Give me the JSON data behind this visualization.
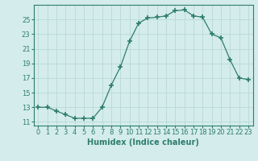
{
  "x": [
    0,
    1,
    2,
    3,
    4,
    5,
    6,
    7,
    8,
    9,
    10,
    11,
    12,
    13,
    14,
    15,
    16,
    17,
    18,
    19,
    20,
    21,
    22,
    23
  ],
  "y": [
    13,
    13,
    12.5,
    12,
    11.5,
    11.5,
    11.5,
    13,
    16,
    18.5,
    22,
    24.5,
    25.2,
    25.3,
    25.5,
    26.2,
    26.3,
    25.5,
    25.3,
    23,
    22.5,
    19.5,
    17,
    16.8
  ],
  "line_color": "#2e7d6e",
  "marker": "+",
  "marker_size": 4,
  "bg_color": "#d4ecec",
  "grid_color": "#b8d8d8",
  "xlabel": "Humidex (Indice chaleur)",
  "xlim": [
    -0.5,
    23.5
  ],
  "ylim": [
    10.5,
    27.0
  ],
  "yticks": [
    11,
    13,
    15,
    17,
    19,
    21,
    23,
    25
  ],
  "xticks": [
    0,
    1,
    2,
    3,
    4,
    5,
    6,
    7,
    8,
    9,
    10,
    11,
    12,
    13,
    14,
    15,
    16,
    17,
    18,
    19,
    20,
    21,
    22,
    23
  ],
  "tick_color": "#2e7d6e",
  "label_color": "#2e7d6e",
  "font_size": 6,
  "xlabel_font_size": 7
}
